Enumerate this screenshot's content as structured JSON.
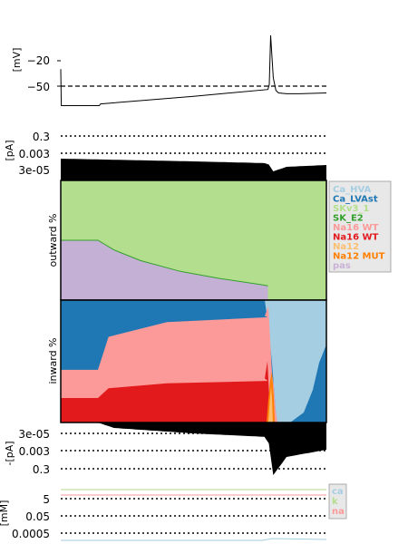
{
  "chart_data": [
    {
      "type": "line",
      "panel": "voltage",
      "ylabel": "[mV]",
      "yticks": [
        "−20",
        "−50"
      ],
      "ylim": [
        -78,
        12
      ],
      "threshold_mV": -50,
      "series": [
        {
          "x": [
            0.0,
            0.002,
            0.01,
            0.145,
            0.15,
            0.5,
            0.78,
            0.785,
            0.79,
            0.8,
            0.81,
            0.82,
            0.85,
            0.9,
            1.0
          ],
          "y": [
            -30,
            -73,
            -73,
            -73,
            -71,
            -62,
            -54,
            -48,
            10,
            -40,
            -55,
            -58,
            -59,
            -59,
            -58
          ]
        }
      ]
    },
    {
      "type": "area",
      "panel": "outward-currents",
      "ylabel": "[pA]",
      "yticks": [
        "0.3",
        "0.003",
        "3e-05"
      ],
      "upper_envelope": {
        "x": [
          0.0,
          0.5,
          0.78,
          0.8,
          0.85,
          1.0
        ],
        "y": [
          12,
          9,
          7,
          -2,
          3,
          5
        ]
      },
      "fill_color": "#000000"
    },
    {
      "type": "area",
      "panel": "outward-percent",
      "ylabel": "outward %",
      "series": [
        {
          "name": "pas",
          "color": "#c5b0d5",
          "x": [
            0.0,
            0.14,
            0.2,
            0.3,
            0.45,
            0.6,
            0.75,
            0.78
          ],
          "y": [
            50,
            50,
            42,
            33,
            24,
            18,
            13,
            12
          ]
        },
        {
          "name": "SKv3_1",
          "color": "#b3de8d",
          "x": [
            0.0,
            1.0
          ],
          "y": [
            100,
            100
          ]
        }
      ]
    },
    {
      "type": "area",
      "panel": "inward-percent",
      "ylabel": "inward %",
      "series": [
        {
          "name": "Na16 WT",
          "color": "#e31a1c",
          "x": [
            0.0,
            0.14,
            0.18,
            0.4,
            0.78
          ],
          "y": [
            20,
            20,
            28,
            32,
            34
          ]
        },
        {
          "name": "Na16 WT pale",
          "color": "#fb9a99",
          "x": [
            0.0,
            0.14,
            0.18,
            0.4,
            0.78
          ],
          "y": [
            43,
            43,
            70,
            82,
            86
          ]
        },
        {
          "name": "Ca_LVAst",
          "color": "#1f78b4",
          "x": [
            0.0,
            1.0
          ],
          "y": [
            100,
            100
          ]
        },
        {
          "name": "Ca_HVA",
          "color": "#a6cee3",
          "x": [
            0.78,
            0.82,
            1.0
          ],
          "y": [
            100,
            100,
            100
          ]
        }
      ]
    },
    {
      "type": "area",
      "panel": "inward-currents",
      "ylabel": "-[pA]",
      "yticks": [
        "3e-05",
        "0.003",
        "0.3"
      ],
      "fill_color": "#000000"
    },
    {
      "type": "line",
      "panel": "concentrations",
      "ylabel": "[mM]",
      "yticks": [
        "5",
        "0.05",
        "0.0005"
      ],
      "legend": [
        "ca",
        "k",
        "na"
      ],
      "legend_colors": [
        "#a6cee3",
        "#b3de8d",
        "#fb9a99"
      ]
    }
  ],
  "legend": {
    "items": [
      {
        "label": "Ca_HVA",
        "color": "#a6cee3"
      },
      {
        "label": "Ca_LVAst",
        "color": "#1f78b4"
      },
      {
        "label": "SKv3_1",
        "color": "#b2df8a"
      },
      {
        "label": "SK_E2",
        "color": "#33a02c"
      },
      {
        "label": "Na16 WT",
        "color": "#fb9a99"
      },
      {
        "label": "Na16 WT",
        "color": "#e31a1c"
      },
      {
        "label": "Na12",
        "color": "#fdbf6f"
      },
      {
        "label": "Na12 MUT",
        "color": "#ff7f00"
      },
      {
        "label": "pas",
        "color": "#cab2d6"
      }
    ]
  }
}
